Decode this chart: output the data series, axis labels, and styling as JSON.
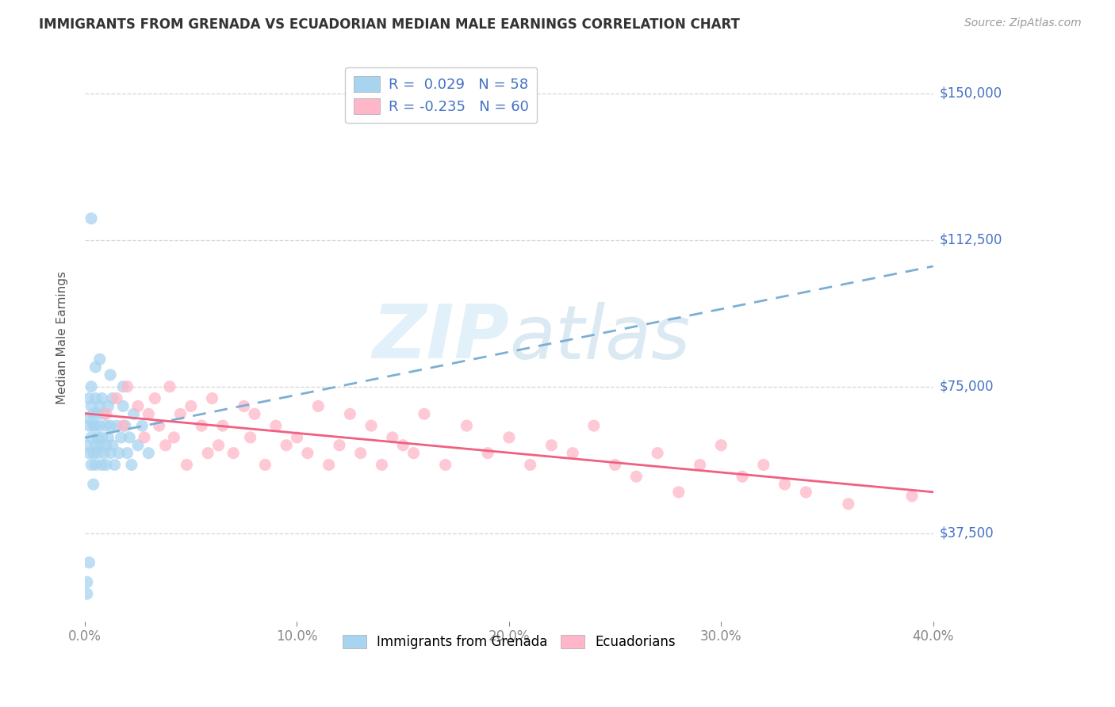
{
  "title": "IMMIGRANTS FROM GRENADA VS ECUADORIAN MEDIAN MALE EARNINGS CORRELATION CHART",
  "source_text": "Source: ZipAtlas.com",
  "ylabel": "Median Male Earnings",
  "xlim": [
    0.0,
    0.4
  ],
  "ylim": [
    15000,
    160000
  ],
  "xticks": [
    0.0,
    0.1,
    0.2,
    0.3,
    0.4
  ],
  "xtick_labels": [
    "0.0%",
    "10.0%",
    "20.0%",
    "30.0%",
    "40.0%"
  ],
  "yticks": [
    37500,
    75000,
    112500,
    150000
  ],
  "ytick_labels": [
    "$37,500",
    "$75,000",
    "$112,500",
    "$150,000"
  ],
  "grenada": {
    "name": "Immigrants from Grenada",
    "R": 0.029,
    "N": 58,
    "color": "#a8d4f0",
    "line_color": "#7bafd4",
    "line_style": "--",
    "x": [
      0.001,
      0.001,
      0.002,
      0.002,
      0.002,
      0.003,
      0.003,
      0.003,
      0.003,
      0.004,
      0.004,
      0.004,
      0.004,
      0.005,
      0.005,
      0.005,
      0.005,
      0.006,
      0.006,
      0.006,
      0.007,
      0.007,
      0.007,
      0.008,
      0.008,
      0.008,
      0.009,
      0.009,
      0.01,
      0.01,
      0.01,
      0.011,
      0.011,
      0.012,
      0.012,
      0.013,
      0.013,
      0.014,
      0.015,
      0.016,
      0.017,
      0.018,
      0.019,
      0.02,
      0.021,
      0.022,
      0.023,
      0.025,
      0.027,
      0.03,
      0.003,
      0.005,
      0.007,
      0.012,
      0.018,
      0.001,
      0.001,
      0.002
    ],
    "y": [
      60000,
      67000,
      58000,
      72000,
      65000,
      55000,
      62000,
      70000,
      75000,
      58000,
      65000,
      50000,
      68000,
      60000,
      72000,
      55000,
      65000,
      62000,
      68000,
      58000,
      70000,
      60000,
      65000,
      55000,
      72000,
      62000,
      58000,
      68000,
      65000,
      60000,
      55000,
      70000,
      62000,
      58000,
      65000,
      60000,
      72000,
      55000,
      65000,
      58000,
      62000,
      70000,
      65000,
      58000,
      62000,
      55000,
      68000,
      60000,
      65000,
      58000,
      118000,
      80000,
      82000,
      78000,
      75000,
      25000,
      22000,
      30000
    ]
  },
  "ecuador": {
    "name": "Ecuadorians",
    "R": -0.235,
    "N": 60,
    "color": "#ffb6c8",
    "line_color": "#f06080",
    "line_style": "-",
    "x": [
      0.01,
      0.015,
      0.018,
      0.02,
      0.025,
      0.028,
      0.03,
      0.033,
      0.035,
      0.038,
      0.04,
      0.042,
      0.045,
      0.048,
      0.05,
      0.055,
      0.058,
      0.06,
      0.063,
      0.065,
      0.07,
      0.075,
      0.078,
      0.08,
      0.085,
      0.09,
      0.095,
      0.1,
      0.105,
      0.11,
      0.115,
      0.12,
      0.125,
      0.13,
      0.135,
      0.14,
      0.145,
      0.15,
      0.155,
      0.16,
      0.17,
      0.18,
      0.19,
      0.2,
      0.21,
      0.22,
      0.23,
      0.24,
      0.25,
      0.26,
      0.27,
      0.28,
      0.29,
      0.3,
      0.31,
      0.32,
      0.33,
      0.34,
      0.36,
      0.39
    ],
    "y": [
      68000,
      72000,
      65000,
      75000,
      70000,
      62000,
      68000,
      72000,
      65000,
      60000,
      75000,
      62000,
      68000,
      55000,
      70000,
      65000,
      58000,
      72000,
      60000,
      65000,
      58000,
      70000,
      62000,
      68000,
      55000,
      65000,
      60000,
      62000,
      58000,
      70000,
      55000,
      60000,
      68000,
      58000,
      65000,
      55000,
      62000,
      60000,
      58000,
      68000,
      55000,
      65000,
      58000,
      62000,
      55000,
      60000,
      58000,
      65000,
      55000,
      52000,
      58000,
      48000,
      55000,
      60000,
      52000,
      55000,
      50000,
      48000,
      45000,
      47000
    ]
  },
  "watermark_zip": "ZIP",
  "watermark_atlas": "atlas",
  "background_color": "#ffffff",
  "grid_color": "#cccccc",
  "title_color": "#333333",
  "tick_color": "#4472c4"
}
